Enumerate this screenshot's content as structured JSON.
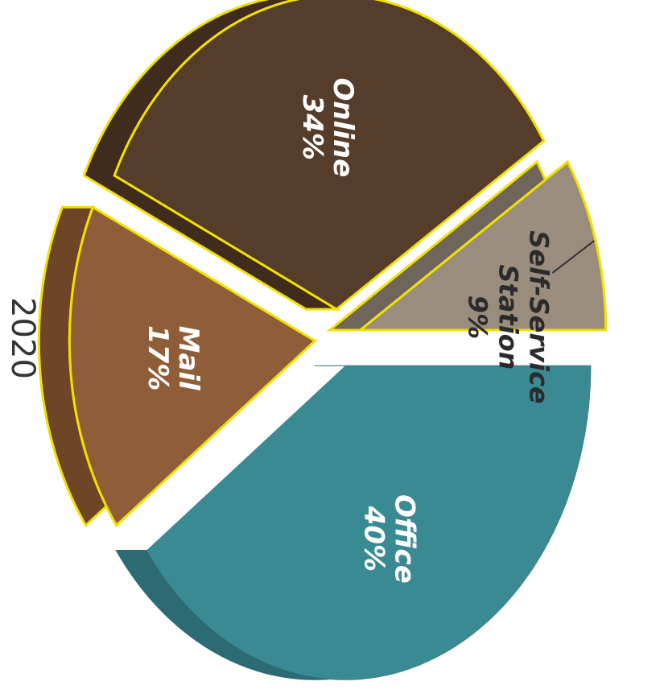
{
  "chart_data": {
    "type": "pie",
    "title": "2020",
    "slices": [
      {
        "label": "Office",
        "value": 40,
        "value_text": "40%",
        "color": "#3a8a94",
        "side_color": "#2c6b73",
        "outline": ""
      },
      {
        "label": "Mail",
        "value": 17,
        "value_text": "17%",
        "color": "#8f5e38",
        "side_color": "#6e4526",
        "outline": "#f2e000"
      },
      {
        "label": "Online",
        "value": 34,
        "value_text": "34%",
        "color": "#553d2a",
        "side_color": "#3f2c1d",
        "outline": "#f2e000"
      },
      {
        "label": "Self-Service Station",
        "label_lines": [
          "Self-Service",
          "Station"
        ],
        "value": 9,
        "value_text": "9%",
        "color": "#9a8d7e",
        "side_color": "#6e655b",
        "outline": "#f2e000"
      }
    ],
    "legend": "none",
    "rotation": "rotated 90 degrees clockwise"
  }
}
